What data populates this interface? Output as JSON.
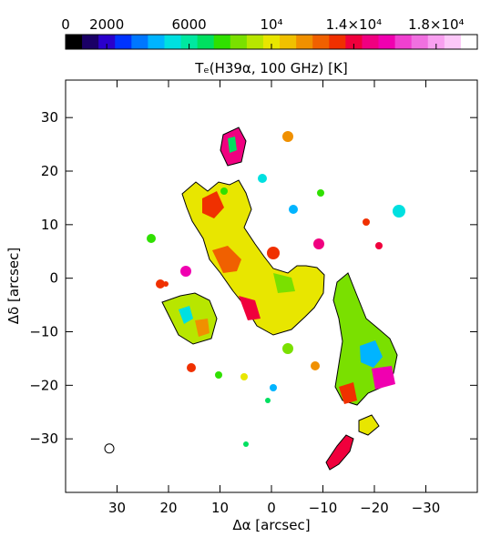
{
  "figure": {
    "colorbar_title": "Tₑ(H39α, 100 GHz) [K]",
    "colorbar_ticks": [
      {
        "value": 0,
        "label": "0"
      },
      {
        "value": 2000,
        "label": "2000"
      },
      {
        "value": 6000,
        "label": "6000"
      },
      {
        "value": 10000,
        "label": "10⁴"
      },
      {
        "value": 14000,
        "label": "1.4×10⁴"
      },
      {
        "value": 18000,
        "label": "1.8×10⁴"
      }
    ],
    "colorbar_range": [
      0,
      20000
    ],
    "colorbar_colors": [
      "#000000",
      "#1a0066",
      "#2a00cc",
      "#0033ff",
      "#0077ff",
      "#00b4ff",
      "#00e0e0",
      "#00e8a0",
      "#00e060",
      "#30e000",
      "#7ae000",
      "#b8e600",
      "#e8e600",
      "#f0c000",
      "#f09000",
      "#f06000",
      "#f03000",
      "#f0003c",
      "#f00080",
      "#f000b0",
      "#f040d0",
      "#f070e0",
      "#f8a0f0",
      "#fcc8f8",
      "#ffffff"
    ],
    "x_axis": {
      "label": "Δα [arcsec]",
      "range": [
        40,
        -40
      ],
      "ticks": [
        {
          "value": 30,
          "label": "30"
        },
        {
          "value": 20,
          "label": "20"
        },
        {
          "value": 10,
          "label": "10"
        },
        {
          "value": 0,
          "label": "0"
        },
        {
          "value": -10,
          "label": "−10"
        },
        {
          "value": -20,
          "label": "−20"
        },
        {
          "value": -30,
          "label": "−30"
        }
      ]
    },
    "y_axis": {
      "label": "Δδ [arcsec]",
      "range": [
        -40,
        37
      ],
      "ticks": [
        {
          "value": 30,
          "label": "30"
        },
        {
          "value": 20,
          "label": "20"
        },
        {
          "value": 10,
          "label": "10"
        },
        {
          "value": 0,
          "label": "0"
        },
        {
          "value": -10,
          "label": "−10"
        },
        {
          "value": -20,
          "label": "−20"
        },
        {
          "value": -30,
          "label": "−30"
        }
      ]
    },
    "beam": {
      "x": 31.5,
      "y": -31.8
    }
  }
}
